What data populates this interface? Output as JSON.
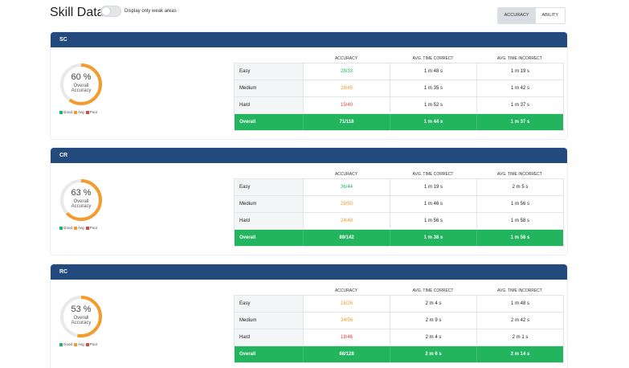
{
  "header": {
    "title": "Skill Data",
    "toggle_label": "Display only weak areas",
    "toggle_on": false,
    "tabs": [
      "ACCURACY",
      "ABILITY"
    ],
    "active_tab": "ACCURACY"
  },
  "colors": {
    "header_bar": "#234a7d",
    "good": "#22b55e",
    "avg": "#f39c2b",
    "poor": "#e0443a",
    "overall_row": "#22b55e",
    "donut_track": "#e8e9eb"
  },
  "legend": [
    "Good",
    "Avg",
    "Poor"
  ],
  "columns": [
    "ACCURACY",
    "AVG. TIME CORRECT",
    "AVG. TIME INCORRECT"
  ],
  "panels": [
    {
      "name": "SC",
      "accuracy_pct": 60,
      "pct_label": "60 %",
      "cap1": "Overall",
      "cap2": "Accuracy",
      "rows": [
        {
          "label": "Easy",
          "accuracy": "28/33",
          "rating": "good",
          "time_correct": "1 m 48 s",
          "time_incorrect": "1 m 19 s"
        },
        {
          "label": "Medium",
          "accuracy": "28/45",
          "rating": "avg",
          "time_correct": "1 m 35 s",
          "time_incorrect": "1 m 42 s"
        },
        {
          "label": "Hard",
          "accuracy": "15/40",
          "rating": "poor",
          "time_correct": "1 m 52 s",
          "time_incorrect": "1 m 37 s"
        }
      ],
      "overall": {
        "label": "Overall",
        "accuracy": "71/118",
        "time_correct": "1 m 44 s",
        "time_incorrect": "1 m 37 s"
      }
    },
    {
      "name": "CR",
      "accuracy_pct": 63,
      "pct_label": "63 %",
      "cap1": "Overall",
      "cap2": "Accuracy",
      "rows": [
        {
          "label": "Easy",
          "accuracy": "36/44",
          "rating": "good",
          "time_correct": "1 m 19 s",
          "time_incorrect": "2 m 5 s"
        },
        {
          "label": "Medium",
          "accuracy": "29/50",
          "rating": "avg",
          "time_correct": "1 m 46 s",
          "time_incorrect": "1 m 56 s"
        },
        {
          "label": "Hard",
          "accuracy": "24/48",
          "rating": "avg",
          "time_correct": "1 m 56 s",
          "time_incorrect": "1 m 58 s"
        }
      ],
      "overall": {
        "label": "Overall",
        "accuracy": "89/142",
        "time_correct": "1 m 38 s",
        "time_incorrect": "1 m 58 s"
      }
    },
    {
      "name": "RC",
      "accuracy_pct": 53,
      "pct_label": "53 %",
      "cap1": "Overall",
      "cap2": "Accuracy",
      "rows": [
        {
          "label": "Easy",
          "accuracy": "16/26",
          "rating": "avg",
          "time_correct": "2 m 4 s",
          "time_incorrect": "1 m 48 s"
        },
        {
          "label": "Medium",
          "accuracy": "34/56",
          "rating": "avg",
          "time_correct": "2 m 9 s",
          "time_incorrect": "2 m 42 s"
        },
        {
          "label": "Hard",
          "accuracy": "18/46",
          "rating": "poor",
          "time_correct": "2 m 4 s",
          "time_incorrect": "2 m 1 s"
        }
      ],
      "overall": {
        "label": "Overall",
        "accuracy": "68/128",
        "time_correct": "2 m 6 s",
        "time_incorrect": "2 m 14 s"
      }
    }
  ]
}
